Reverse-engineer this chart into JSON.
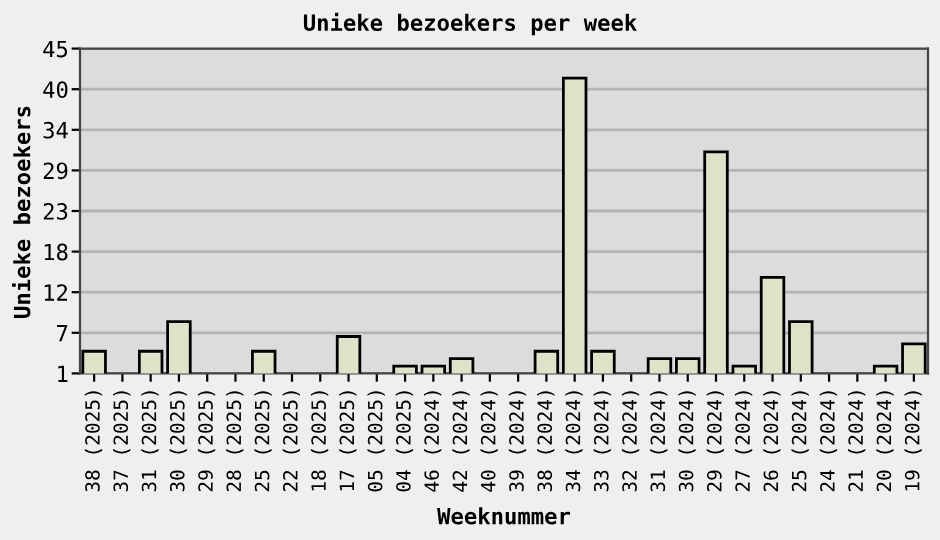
{
  "chart_data": {
    "type": "bar",
    "title": "Unieke bezoekers per week",
    "xlabel": "Weeknummer",
    "ylabel": "Unieke bezoekers",
    "categories": [
      "38 (2025)",
      "37 (2025)",
      "31 (2025)",
      "30 (2025)",
      "29 (2025)",
      "28 (2025)",
      "25 (2025)",
      "22 (2025)",
      "18 (2025)",
      "17 (2025)",
      "05 (2025)",
      "04 (2025)",
      "46 (2024)",
      "42 (2024)",
      "40 (2024)",
      "39 (2024)",
      "38 (2024)",
      "34 (2024)",
      "33 (2024)",
      "32 (2024)",
      "31 (2024)",
      "30 (2024)",
      "29 (2024)",
      "27 (2024)",
      "26 (2024)",
      "25 (2024)",
      "24 (2024)",
      "21 (2024)",
      "20 (2024)",
      "19 (2024)"
    ],
    "values": [
      4,
      null,
      4,
      8,
      null,
      null,
      4,
      null,
      null,
      6,
      null,
      2,
      2,
      3,
      null,
      null,
      4,
      41,
      4,
      null,
      3,
      3,
      31,
      2,
      14,
      8,
      null,
      null,
      2,
      5
    ],
    "color": "#dde3c8",
    "ylim": [
      1,
      45
    ],
    "yticks": [
      1,
      {
        "value": 6.5,
        "label": "7"
      },
      12,
      {
        "value": 17.5,
        "label": "18"
      },
      23,
      {
        "value": 28.5,
        "label": "29"
      },
      34,
      {
        "value": 39.5,
        "label": "40"
      },
      45
    ],
    "grid": "y"
  }
}
